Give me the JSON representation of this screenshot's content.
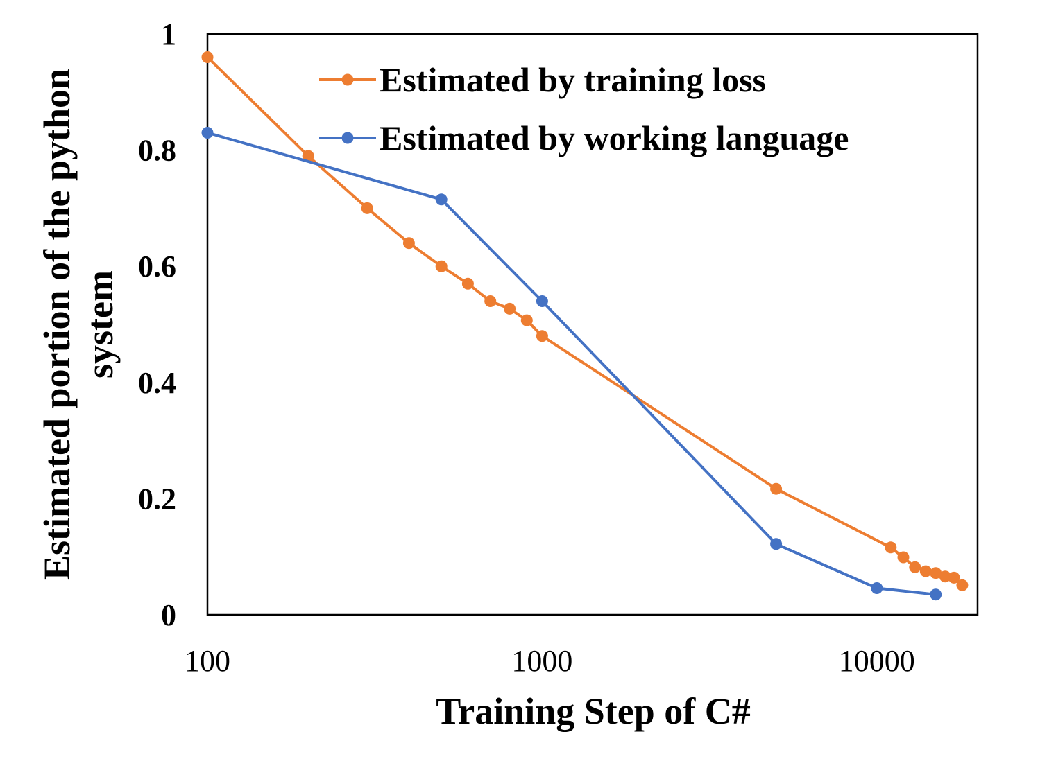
{
  "chart_data": {
    "type": "line",
    "title": "",
    "xlabel": "Training Step of C#",
    "ylabel_lines": [
      "Estimated portion of the python",
      "system"
    ],
    "x_scale": "log",
    "xlim": [
      100,
      20000
    ],
    "ylim": [
      0,
      1
    ],
    "x_ticks": [
      {
        "value": 100,
        "label": "100"
      },
      {
        "value": 1000,
        "label": "1000"
      },
      {
        "value": 10000,
        "label": "10000"
      }
    ],
    "y_ticks": [
      {
        "value": 0,
        "label": "0"
      },
      {
        "value": 0.2,
        "label": "0.2"
      },
      {
        "value": 0.4,
        "label": "0.4"
      },
      {
        "value": 0.6,
        "label": "0.6"
      },
      {
        "value": 0.8,
        "label": "0.8"
      },
      {
        "value": 1,
        "label": "1"
      }
    ],
    "grid": false,
    "legend_position": "top-right",
    "series": [
      {
        "name": "Estimated by training loss",
        "color": "#ED7D31",
        "x": [
          100,
          200,
          300,
          400,
          500,
          600,
          700,
          800,
          900,
          1000,
          5000,
          11000,
          12000,
          13000,
          14000,
          15000,
          16000,
          17000,
          18000
        ],
        "y": [
          0.96,
          0.79,
          0.7,
          0.64,
          0.6,
          0.57,
          0.54,
          0.527,
          0.507,
          0.48,
          0.217,
          0.116,
          0.099,
          0.082,
          0.075,
          0.072,
          0.066,
          0.064,
          0.051
        ]
      },
      {
        "name": "Estimated by working language",
        "color": "#4472C4",
        "x": [
          100,
          500,
          1000,
          5000,
          10000,
          15000
        ],
        "y": [
          0.83,
          0.715,
          0.54,
          0.122,
          0.046,
          0.035
        ]
      }
    ]
  }
}
